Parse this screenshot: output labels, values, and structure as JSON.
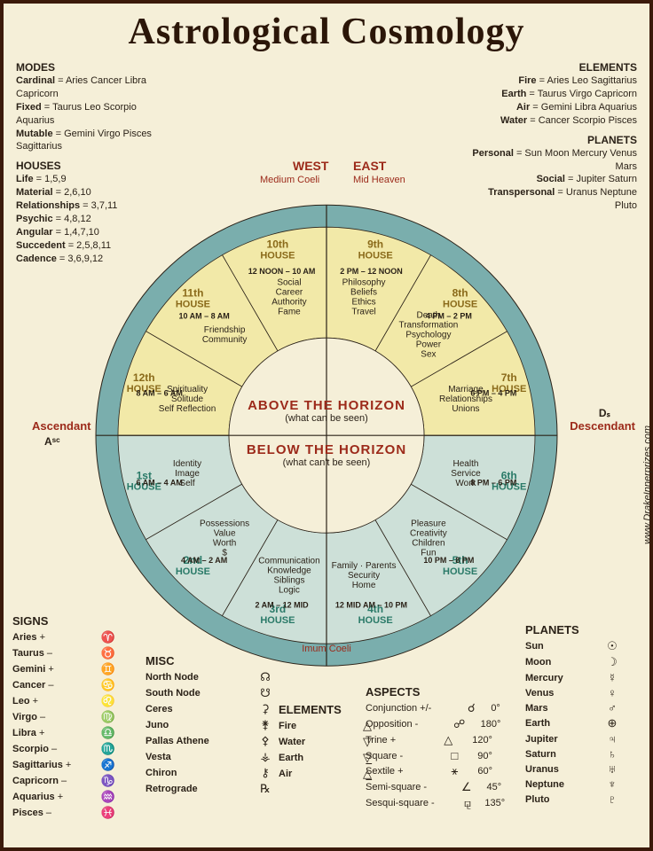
{
  "title": "Astrological Cosmology",
  "side_url": "www.DrakeInnerprizes.com",
  "colors": {
    "background": "#f5efd8",
    "border": "#3b1a0a",
    "ring": "#7aaead",
    "accent": "#9c2a1a",
    "text": "#2b2218",
    "upper_fill": "#f2e9a8",
    "lower_fill": "#cde0d8",
    "house_title_upper": "#8a6a1a",
    "house_title_lower": "#2a7a68"
  },
  "modes": {
    "heading": "MODES",
    "items": [
      {
        "label": "Cardinal",
        "value": "Aries Cancer Libra Capricorn"
      },
      {
        "label": "Fixed",
        "value": "Taurus Leo Scorpio Aquarius"
      },
      {
        "label": "Mutable",
        "value": "Gemini Virgo Pisces Sagittarius"
      }
    ]
  },
  "houses_key": {
    "heading": "HOUSES",
    "items": [
      {
        "label": "Life",
        "value": "1,5,9"
      },
      {
        "label": "Material",
        "value": "2,6,10"
      },
      {
        "label": "Relationships",
        "value": "3,7,11"
      },
      {
        "label": "Psychic",
        "value": "4,8,12"
      },
      {
        "label": "Angular",
        "value": "1,4,7,10"
      },
      {
        "label": "Succedent",
        "value": "2,5,8,11"
      },
      {
        "label": "Cadence",
        "value": "3,6,9,12"
      }
    ]
  },
  "elements_key": {
    "heading": "ELEMENTS",
    "items": [
      {
        "label": "Fire",
        "value": "Aries Leo Sagittarius"
      },
      {
        "label": "Earth",
        "value": "Taurus Virgo Capricorn"
      },
      {
        "label": "Air",
        "value": "Gemini Libra Aquarius"
      },
      {
        "label": "Water",
        "value": "Cancer Scorpio Pisces"
      }
    ]
  },
  "planets_key": {
    "heading": "PLANETS",
    "items": [
      {
        "label": "Personal",
        "value": "Sun Moon Mercury Venus Mars"
      },
      {
        "label": "Social",
        "value": "Jupiter Saturn"
      },
      {
        "label": "Transpersonal",
        "value": "Uranus Neptune Pluto"
      }
    ]
  },
  "axis": {
    "west": "WEST",
    "east": "EAST",
    "mc": "Medium Coeli",
    "mh": "Mid Heaven",
    "ic": "Imum Coeli",
    "asc": "Ascendant",
    "asc_sym": "Aˢᶜ",
    "desc": "Descendant",
    "desc_sym": "Dₛ"
  },
  "center": {
    "above": "ABOVE THE HORIZON",
    "above_sub": "(what can be seen)",
    "below": "BELOW THE HORIZON",
    "below_sub": "(what can't be seen)"
  },
  "wheel": {
    "outer_r": 260,
    "ring_r": 235,
    "inner_r": 110,
    "houses": [
      {
        "n": "1st",
        "word": "HOUSE",
        "time": "6 AM – 4 AM",
        "desc": "Identity\nImage\nSelf",
        "half": "lower",
        "angle": 195
      },
      {
        "n": "2nd",
        "word": "HOUSE",
        "time": "4 AM – 2 AM",
        "desc": "Possessions\nValue\nWorth\n$",
        "half": "lower",
        "angle": 225
      },
      {
        "n": "3rd",
        "word": "HOUSE",
        "time": "2 AM – 12 MID",
        "desc": "Communication\nKnowledge\nSiblings\nLogic",
        "half": "lower",
        "angle": 255
      },
      {
        "n": "4th",
        "word": "HOUSE",
        "time": "12 MID AM – 10 PM",
        "desc": "Family · Parents\nSecurity\nHome",
        "half": "lower",
        "angle": 285
      },
      {
        "n": "5th",
        "word": "HOUSE",
        "time": "10 PM – 8 PM",
        "desc": "Pleasure\nCreativity\nChildren\nFun",
        "half": "lower",
        "angle": 315
      },
      {
        "n": "6th",
        "word": "HOUSE",
        "time": "8 PM – 6 PM",
        "desc": "Health\nService\nWork",
        "half": "lower",
        "angle": 345
      },
      {
        "n": "7th",
        "word": "HOUSE",
        "time": "6 PM – 4 PM",
        "desc": "Marriage\nRelationships\nUnions",
        "half": "upper",
        "angle": 15
      },
      {
        "n": "8th",
        "word": "HOUSE",
        "time": "4 PM – 2 PM",
        "desc": "Death\nTransformation\nPsychology\nPower\nSex",
        "half": "upper",
        "angle": 45
      },
      {
        "n": "9th",
        "word": "HOUSE",
        "time": "2 PM – 12 NOON",
        "desc": "Philosophy\nBeliefs\nEthics\nTravel",
        "half": "upper",
        "angle": 75
      },
      {
        "n": "10th",
        "word": "HOUSE",
        "time": "12 NOON – 10 AM",
        "desc": "Social\nCareer\nAuthority\nFame",
        "half": "upper",
        "angle": 105
      },
      {
        "n": "11th",
        "word": "HOUSE",
        "time": "10 AM – 8 AM",
        "desc": "Friendship\nCommunity",
        "half": "upper",
        "angle": 135
      },
      {
        "n": "12th",
        "word": "HOUSE",
        "time": "8 AM – 6 AM",
        "desc": "Spirituality\nSolitude\nSelf Reflection",
        "half": "upper",
        "angle": 165
      }
    ]
  },
  "signs": {
    "heading": "SIGNS",
    "items": [
      {
        "name": "Aries",
        "pol": "+",
        "sym": "♈"
      },
      {
        "name": "Taurus",
        "pol": "–",
        "sym": "♉"
      },
      {
        "name": "Gemini",
        "pol": "+",
        "sym": "♊"
      },
      {
        "name": "Cancer",
        "pol": "–",
        "sym": "♋"
      },
      {
        "name": "Leo",
        "pol": "+",
        "sym": "♌"
      },
      {
        "name": "Virgo",
        "pol": "–",
        "sym": "♍"
      },
      {
        "name": "Libra",
        "pol": "+",
        "sym": "♎"
      },
      {
        "name": "Scorpio",
        "pol": "–",
        "sym": "♏"
      },
      {
        "name": "Sagittarius",
        "pol": "+",
        "sym": "♐"
      },
      {
        "name": "Capricorn",
        "pol": "–",
        "sym": "♑"
      },
      {
        "name": "Aquarius",
        "pol": "+",
        "sym": "♒"
      },
      {
        "name": "Pisces",
        "pol": "–",
        "sym": "♓"
      }
    ]
  },
  "misc": {
    "heading": "MISC",
    "items": [
      {
        "name": "North Node",
        "sym": "☊"
      },
      {
        "name": "South Node",
        "sym": "☋"
      },
      {
        "name": "Ceres",
        "sym": "⚳"
      },
      {
        "name": "Juno",
        "sym": "⚵"
      },
      {
        "name": "Pallas Athene",
        "sym": "⚴"
      },
      {
        "name": "Vesta",
        "sym": "⚶"
      },
      {
        "name": "Chiron",
        "sym": "⚷"
      },
      {
        "name": "Retrograde",
        "sym": "℞"
      }
    ]
  },
  "elements_tbl": {
    "heading": "ELEMENTS",
    "items": [
      {
        "name": "Fire",
        "sym": "△"
      },
      {
        "name": "Water",
        "sym": "▽"
      },
      {
        "name": "Earth",
        "sym": "▽̲"
      },
      {
        "name": "Air",
        "sym": "△̲"
      }
    ]
  },
  "aspects": {
    "heading": "ASPECTS",
    "items": [
      {
        "name": "Conjunction +/-",
        "sym": "☌",
        "deg": "0°"
      },
      {
        "name": "Opposition -",
        "sym": "☍",
        "deg": "180°"
      },
      {
        "name": "Trine +",
        "sym": "△",
        "deg": "120°"
      },
      {
        "name": "Square -",
        "sym": "□",
        "deg": "90°"
      },
      {
        "name": "Sextile +",
        "sym": "⚹",
        "deg": "60°"
      },
      {
        "name": "Semi-square -",
        "sym": "∠",
        "deg": "45°"
      },
      {
        "name": "Sesqui-square -",
        "sym": "⚼",
        "deg": "135°"
      }
    ]
  },
  "planets_tbl": {
    "heading": "PLANETS",
    "items": [
      {
        "name": "Sun",
        "sym": "☉"
      },
      {
        "name": "Moon",
        "sym": "☽"
      },
      {
        "name": "Mercury",
        "sym": "☿"
      },
      {
        "name": "Venus",
        "sym": "♀"
      },
      {
        "name": "Mars",
        "sym": "♂"
      },
      {
        "name": "Earth",
        "sym": "⊕"
      },
      {
        "name": "Jupiter",
        "sym": "♃"
      },
      {
        "name": "Saturn",
        "sym": "♄"
      },
      {
        "name": "Uranus",
        "sym": "♅"
      },
      {
        "name": "Neptune",
        "sym": "♆"
      },
      {
        "name": "Pluto",
        "sym": "♇"
      }
    ]
  }
}
